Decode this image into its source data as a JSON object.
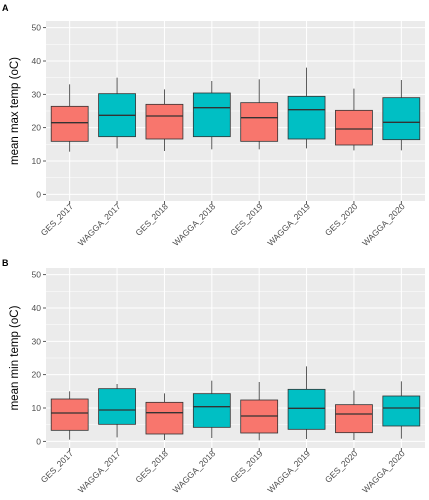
{
  "chart_data": [
    {
      "panel_label": "A",
      "type": "box",
      "title": "",
      "xlabel": "",
      "ylabel": "mean max temp (oC)",
      "ylim": [
        -2,
        52
      ],
      "yticks": [
        0,
        10,
        20,
        30,
        40,
        50
      ],
      "grid": true,
      "legend": "none",
      "categories": [
        "GES_2017",
        "WAGGA_2017",
        "GES_2018",
        "WAGGA_2018",
        "GES_2019",
        "WAGGA_2019",
        "GES_2020",
        "WAGGA_2020"
      ],
      "colors": [
        "#F8766D",
        "#00BFC4",
        "#F8766D",
        "#00BFC4",
        "#F8766D",
        "#00BFC4",
        "#F8766D",
        "#00BFC4"
      ],
      "boxes": [
        {
          "min": 12.8,
          "q1": 15.9,
          "median": 21.5,
          "q3": 26.4,
          "max": 33.0
        },
        {
          "min": 13.8,
          "q1": 17.3,
          "median": 23.7,
          "q3": 30.2,
          "max": 35.0
        },
        {
          "min": 13.0,
          "q1": 16.6,
          "median": 23.5,
          "q3": 27.0,
          "max": 31.5
        },
        {
          "min": 13.5,
          "q1": 17.3,
          "median": 26.0,
          "q3": 30.4,
          "max": 34.0
        },
        {
          "min": 13.5,
          "q1": 15.9,
          "median": 23.0,
          "q3": 27.5,
          "max": 34.5
        },
        {
          "min": 13.8,
          "q1": 16.6,
          "median": 25.4,
          "q3": 29.4,
          "max": 38.0
        },
        {
          "min": 13.2,
          "q1": 14.8,
          "median": 19.6,
          "q3": 25.2,
          "max": 31.7
        },
        {
          "min": 13.2,
          "q1": 16.4,
          "median": 21.6,
          "q3": 29.0,
          "max": 34.3
        }
      ]
    },
    {
      "panel_label": "B",
      "type": "box",
      "title": "",
      "xlabel": "",
      "ylabel": "mean min temp (oC)",
      "ylim": [
        -2,
        52
      ],
      "yticks": [
        0,
        10,
        20,
        30,
        40,
        50
      ],
      "grid": true,
      "legend": "none",
      "categories": [
        "GES_2017",
        "WAGGA_2017",
        "GES_2018",
        "WAGGA_2018",
        "GES_2019",
        "WAGGA_2019",
        "GES_2020",
        "WAGGA_2020"
      ],
      "colors": [
        "#F8766D",
        "#00BFC4",
        "#F8766D",
        "#00BFC4",
        "#F8766D",
        "#00BFC4",
        "#F8766D",
        "#00BFC4"
      ],
      "boxes": [
        {
          "min": 0.5,
          "q1": 3.3,
          "median": 8.5,
          "q3": 12.7,
          "max": 15.0
        },
        {
          "min": 1.2,
          "q1": 5.1,
          "median": 9.4,
          "q3": 15.8,
          "max": 17.2
        },
        {
          "min": 0.4,
          "q1": 2.2,
          "median": 8.6,
          "q3": 11.7,
          "max": 14.4
        },
        {
          "min": 1.0,
          "q1": 4.2,
          "median": 10.4,
          "q3": 14.3,
          "max": 18.2
        },
        {
          "min": 0.3,
          "q1": 2.5,
          "median": 7.6,
          "q3": 12.4,
          "max": 17.8
        },
        {
          "min": 0.7,
          "q1": 3.6,
          "median": 9.9,
          "q3": 15.6,
          "max": 22.5
        },
        {
          "min": 0.4,
          "q1": 2.6,
          "median": 8.2,
          "q3": 11.0,
          "max": 15.2
        },
        {
          "min": 0.8,
          "q1": 4.6,
          "median": 10.0,
          "q3": 13.6,
          "max": 18.0
        }
      ]
    }
  ]
}
